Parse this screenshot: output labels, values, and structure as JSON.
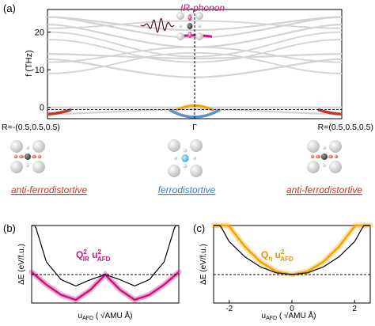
{
  "colors": {
    "phonon": "#d3d3d3",
    "ir": "#c8177d",
    "red": "#c0392b",
    "blue": "#5b8fd0",
    "orange": "#f0a500",
    "axis": "#000000"
  },
  "atom_icons": [
    "atom-cluster-R-left",
    "atom-cluster-gamma",
    "atom-cluster-R-right",
    "atom-cluster-top"
  ],
  "chart_data": [
    {
      "id": "a",
      "type": "line",
      "panel_label": "(a)",
      "ylabel": "f (THz)",
      "ylim": [
        -3,
        26
      ],
      "yticks": [
        0,
        10,
        20
      ],
      "xticks": [
        {
          "pos": 0,
          "label": "R=-(0.5,0.5,0.5)"
        },
        {
          "pos": 1,
          "label": "Γ"
        },
        {
          "pos": 2,
          "label": "R=(0.5,0.5,0.5)"
        }
      ],
      "annotations": {
        "ir_phonon": "IR-phonon",
        "left_mode": "anti-ferrodistortive",
        "center_mode": "ferrodistortive",
        "right_mode": "anti-ferrodistortive"
      },
      "bands_R": [
        -1.8,
        0,
        12.8,
        14.2,
        22.0,
        24.0
      ],
      "bands_gamma": [
        -0.5,
        0,
        8.0,
        13.0,
        16.0,
        18.5,
        20.5
      ]
    },
    {
      "id": "b",
      "type": "line",
      "panel_label": "(b)",
      "ylabel": "ΔE (eV/f.u.)",
      "xlabel": "u_AFD ( √AMU Å)",
      "term": "Q_IR^2 u_AFD^2",
      "x": [
        -2.5,
        -2.0,
        -1.5,
        -1.0,
        -0.5,
        0.0,
        0.5,
        1.0,
        1.5,
        2.0,
        2.5
      ],
      "series": [
        {
          "values": [
            0.24,
            0.05,
            -0.02,
            -0.045,
            -0.02,
            0.0,
            -0.02,
            -0.045,
            -0.02,
            0.05,
            0.24
          ]
        },
        {
          "values": [
            0.01,
            -0.04,
            -0.08,
            -0.1,
            -0.06,
            0.0,
            -0.06,
            -0.1,
            -0.08,
            -0.04,
            0.01
          ]
        }
      ]
    },
    {
      "id": "c",
      "type": "line",
      "panel_label": "(c)",
      "ylabel": "ΔE (eV/f.u.)",
      "xlabel": "u_AFD ( √AMU Å)",
      "xticks": [
        -2,
        0,
        2
      ],
      "term": "Q_η u_AFD^2",
      "x": [
        -2.5,
        -2.0,
        -1.5,
        -1.0,
        -0.5,
        0.0,
        0.5,
        1.0,
        1.5,
        2.0,
        2.5
      ],
      "series": [
        {
          "values": [
            0.24,
            0.13,
            0.07,
            0.03,
            0.007,
            0.0,
            0.007,
            0.03,
            0.07,
            0.13,
            0.24
          ]
        },
        {
          "values": [
            0.3,
            0.19,
            0.11,
            0.05,
            0.012,
            0.0,
            0.012,
            0.05,
            0.11,
            0.19,
            0.3
          ]
        }
      ]
    }
  ]
}
